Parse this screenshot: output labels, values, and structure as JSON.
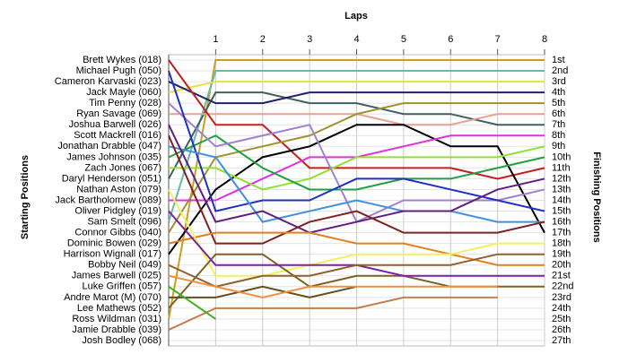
{
  "chart_data": {
    "type": "lap",
    "title": "Laps",
    "y_label": "Starting Positions",
    "y2_label": "Finishing Positions",
    "x": [
      0,
      1,
      2,
      3,
      4,
      5,
      6,
      7,
      8
    ],
    "xlim": [
      0,
      8
    ],
    "xticks": [
      1,
      2,
      3,
      4,
      5,
      6,
      7,
      8
    ],
    "ylim": [
      1,
      27
    ],
    "categories": [
      "Brett Wykes (018)",
      "Michael Pugh (050)",
      "Cameron Karvaski (023)",
      "Jack Mayle (060)",
      "Tim Penny (028)",
      "Ryan Savage (069)",
      "Joshua Barwell (026)",
      "Scott Mackrell (016)",
      "Jonathan Drabble (047)",
      "James Johnson (035)",
      "Zach Jones (067)",
      "Daryl Henderson (051)",
      "Nathan Aston (079)",
      "Jack Bartholomew (089)",
      "Oliver Pidgley (019)",
      "Sam Smelt (096)",
      "Connor Gibbs (040)",
      "Dominic Bowen (029)",
      "Harrison Wignall (017)",
      "Bobby Neil (049)",
      "James Barwell (025)",
      "Luke Griffen (057)",
      "Andre Marot (M) (070)",
      "Lee Mathews (052)",
      "Ross Wildman (031)",
      "Jamie Drabble (039)",
      "Josh Bodley (068)"
    ],
    "finish_labels": [
      "1st",
      "2nd",
      "3rd",
      "4th",
      "5th",
      "6th",
      "7th",
      "8th",
      "9th",
      "10th",
      "11th",
      "12th",
      "13th",
      "14th",
      "15th",
      "16th",
      "17th",
      "18th",
      "19th",
      "20th",
      "21st",
      "22nd",
      "23rd",
      "24th",
      "25th",
      "26th",
      "27th"
    ],
    "grid": true,
    "series": [
      {
        "color": "#c8a020",
        "values": [
          25,
          1,
          1,
          1,
          1,
          1,
          1,
          1,
          1
        ]
      },
      {
        "color": "#6ab8a8",
        "values": [
          16,
          2,
          2,
          2,
          2,
          2,
          2,
          2,
          2
        ]
      },
      {
        "color": "#e8e040",
        "values": [
          4,
          3,
          3,
          3,
          3,
          3,
          3,
          3,
          3
        ]
      },
      {
        "color": "#406060",
        "values": [
          12,
          4,
          4,
          5,
          5,
          6,
          6,
          7,
          7
        ]
      },
      {
        "color": "#202070",
        "values": [
          3,
          5,
          5,
          4,
          4,
          4,
          4,
          4,
          4
        ]
      },
      {
        "color": "#e8a090",
        "values": [
          6,
          6,
          6,
          6,
          6,
          7,
          7,
          6,
          6
        ]
      },
      {
        "color": "#c02020",
        "values": [
          1,
          7,
          7,
          11,
          11,
          11,
          11,
          12,
          11
        ]
      },
      {
        "color": "#a09030",
        "values": [
          17,
          10,
          9,
          8,
          6,
          5,
          5,
          5,
          5
        ]
      },
      {
        "color": "#000000",
        "values": [
          19,
          13,
          10,
          9,
          7,
          7,
          9,
          9,
          17
        ]
      },
      {
        "color": "#e030e0",
        "values": [
          14,
          14,
          12,
          10,
          10,
          9,
          8,
          8,
          8
        ]
      },
      {
        "color": "#90e030",
        "values": [
          11,
          11,
          13,
          12,
          10,
          10,
          10,
          10,
          9
        ]
      },
      {
        "color": "#20a040",
        "values": [
          10,
          8,
          11,
          13,
          13,
          12,
          12,
          11,
          10
        ]
      },
      {
        "color": "#a080d0",
        "values": [
          5,
          9,
          8,
          7,
          16,
          14,
          14,
          14,
          13
        ]
      },
      {
        "color": "#2030c0",
        "values": [
          2,
          15,
          14,
          14,
          12,
          12,
          13,
          14,
          15
        ]
      },
      {
        "color": "#4090e0",
        "values": [
          9,
          10,
          16,
          15,
          14,
          15,
          15,
          16,
          16
        ]
      },
      {
        "color": "#602080",
        "values": [
          7,
          16,
          15,
          17,
          16,
          15,
          15,
          13,
          12
        ]
      },
      {
        "color": "#802020",
        "values": [
          8,
          18,
          18,
          16,
          15,
          17,
          17,
          17,
          16
        ]
      },
      {
        "color": "#e08020",
        "values": [
          18,
          17,
          17,
          17,
          18,
          18,
          19,
          20,
          20
        ]
      },
      {
        "color": "#f0f060",
        "values": [
          13,
          21,
          21,
          20,
          19,
          19,
          19,
          18,
          18
        ]
      },
      {
        "color": "#806020",
        "values": [
          24,
          19,
          19,
          22,
          21,
          21,
          22,
          22,
          22
        ]
      },
      {
        "color": "#8020a0",
        "values": [
          15,
          20,
          20,
          20,
          20,
          21,
          21,
          21,
          21
        ]
      },
      {
        "color": "#906030",
        "values": [
          20,
          22,
          21,
          21,
          20,
          20,
          20,
          19,
          19
        ]
      },
      {
        "color": "#605020",
        "values": [
          23,
          23,
          22,
          23,
          22,
          null,
          null,
          null,
          null
        ]
      },
      {
        "color": "#f09040",
        "values": [
          21,
          22,
          23,
          22,
          22,
          22,
          22,
          22,
          null
        ]
      },
      {
        "color": "#c08050",
        "values": [
          26,
          24,
          24,
          24,
          24,
          23,
          23,
          23,
          null
        ]
      },
      {
        "color": "#40b020",
        "values": [
          22,
          25,
          null,
          null,
          null,
          null,
          null,
          null,
          null
        ]
      }
    ]
  }
}
